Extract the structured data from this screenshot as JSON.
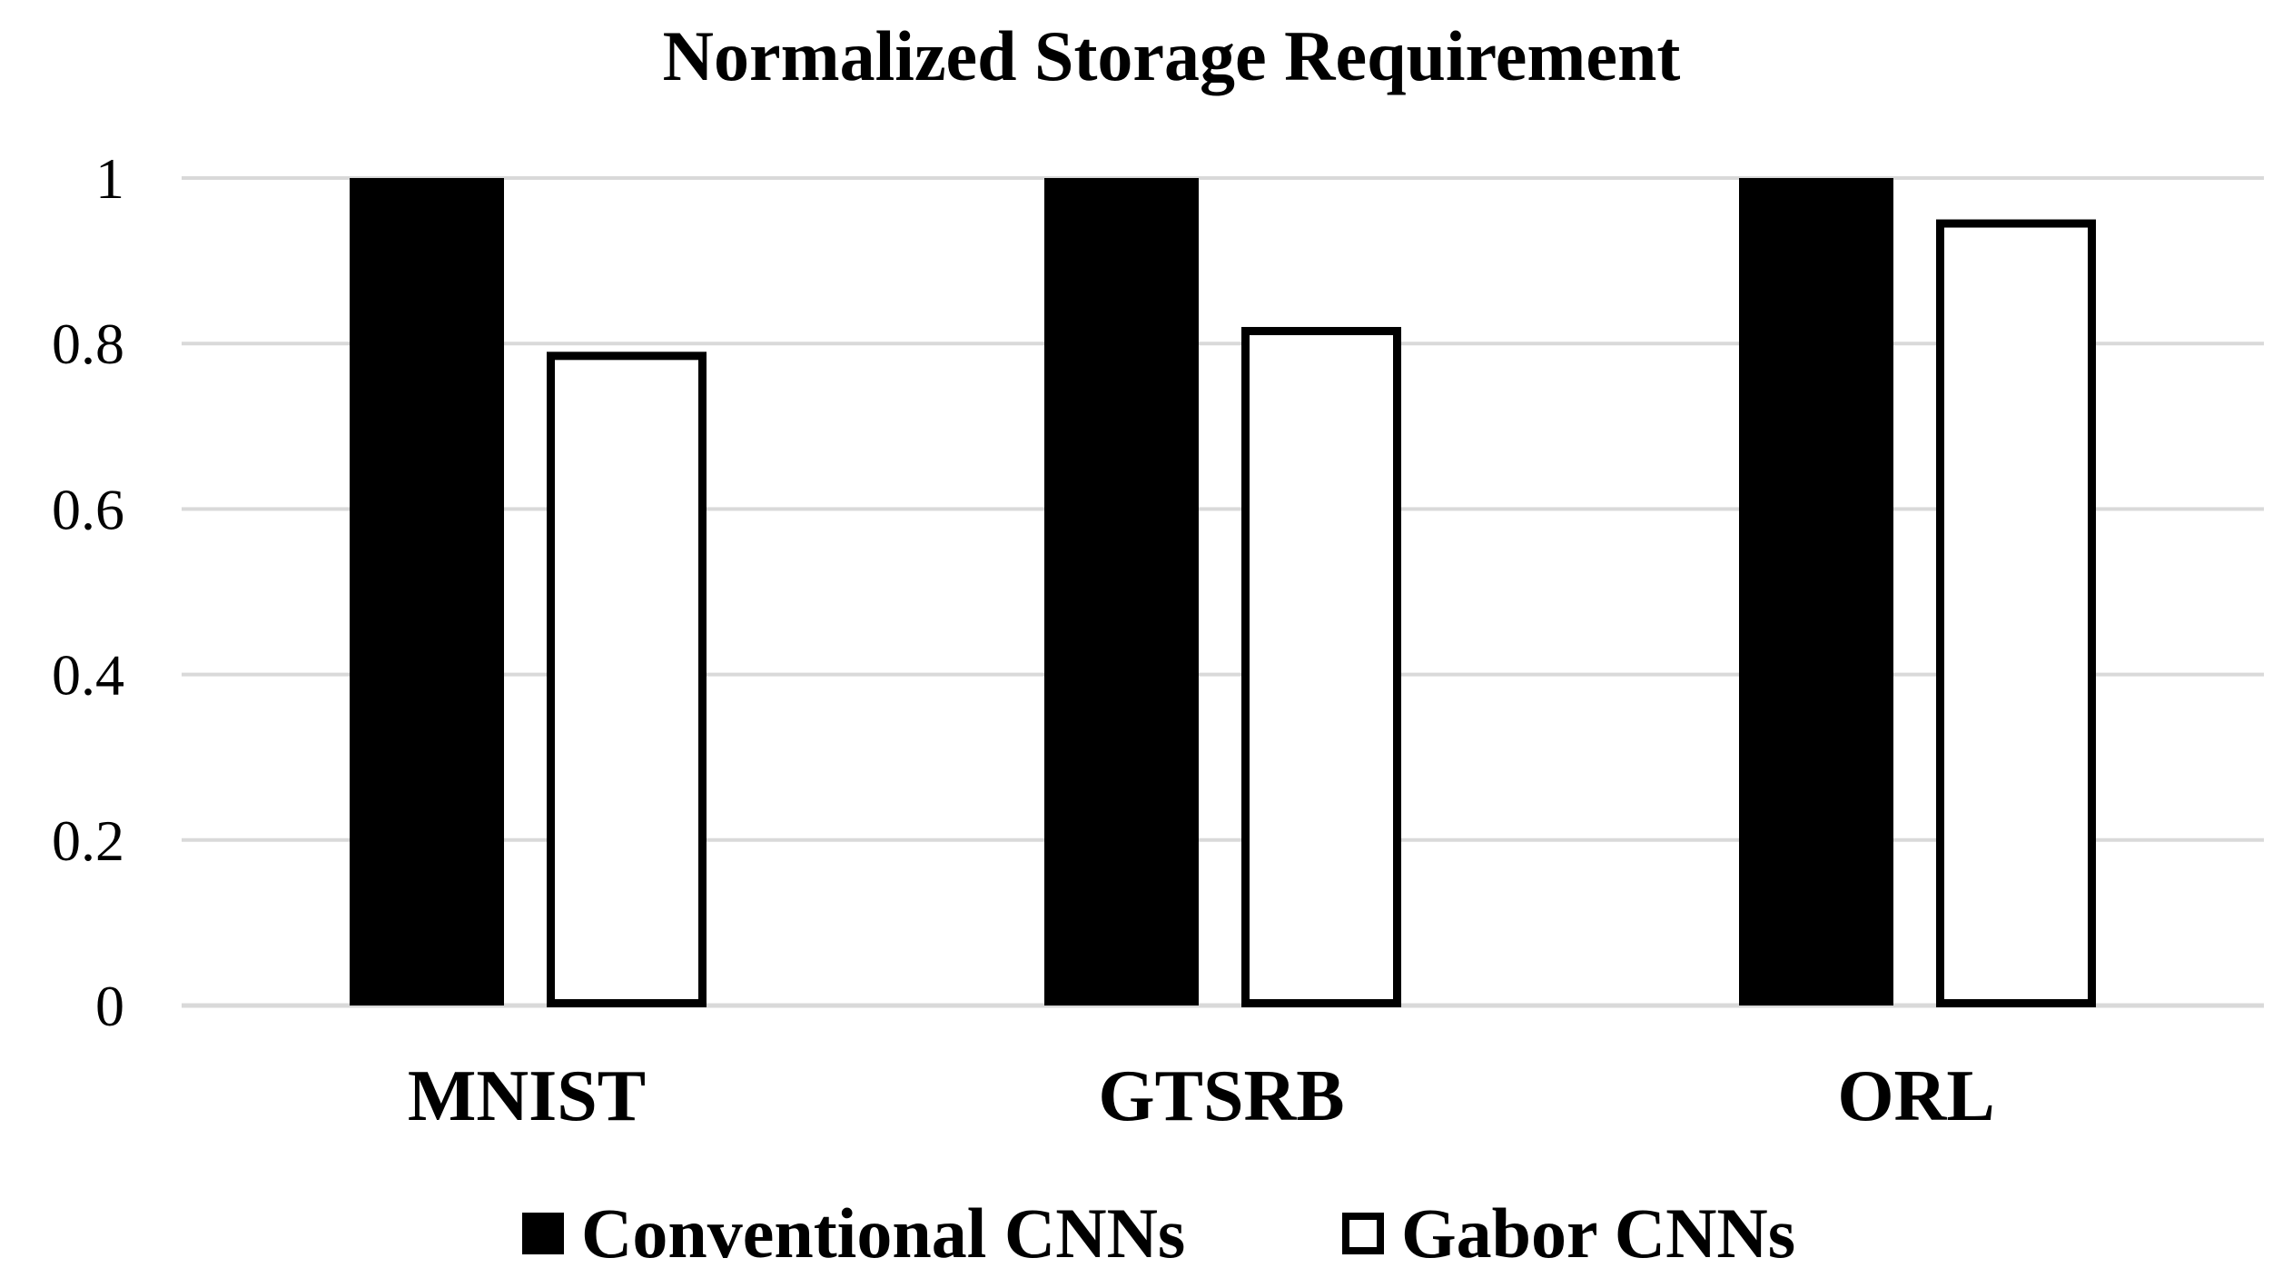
{
  "chart_data": {
    "type": "bar",
    "title": "Normalized Storage Requirement",
    "xlabel": "",
    "ylabel": "",
    "categories": [
      "MNIST",
      "GTSRB",
      "ORL"
    ],
    "series": [
      {
        "name": "Conventional CNNs",
        "values": [
          1,
          1,
          1
        ],
        "fill": "#000000",
        "stroke": "#000000"
      },
      {
        "name": "Gabor CNNs",
        "values": [
          0.79,
          0.82,
          0.95
        ],
        "fill": "#ffffff",
        "stroke": "#000000"
      }
    ],
    "ylim": [
      0,
      1
    ],
    "yticks": [
      0,
      0.2,
      0.4,
      0.6,
      0.8,
      1
    ],
    "ytick_labels": [
      "0",
      "0.2",
      "0.4",
      "0.6",
      "0.8",
      "1"
    ],
    "grid": true,
    "grid_color": "#d9d9d9",
    "legend_position": "bottom-center"
  }
}
